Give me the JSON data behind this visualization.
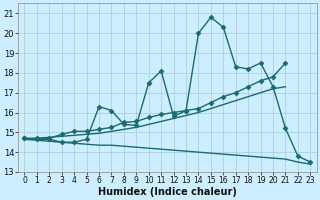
{
  "xlabel": "Humidex (Indice chaleur)",
  "background_color": "#cceeff",
  "grid_color": "#aacccc",
  "line_color": "#1a6b6b",
  "xlim": [
    -0.5,
    23.5
  ],
  "ylim": [
    13,
    21.5
  ],
  "yticks": [
    13,
    14,
    15,
    16,
    17,
    18,
    19,
    20,
    21
  ],
  "xticks": [
    0,
    1,
    2,
    3,
    4,
    5,
    6,
    7,
    8,
    9,
    10,
    11,
    12,
    13,
    14,
    15,
    16,
    17,
    18,
    19,
    20,
    21,
    22,
    23
  ],
  "series": [
    {
      "x": [
        0,
        1,
        2,
        3,
        4,
        5,
        6,
        7,
        8,
        9,
        10,
        11,
        12,
        13,
        14,
        15,
        16,
        17,
        18,
        19,
        20,
        21,
        22,
        23
      ],
      "y": [
        14.7,
        14.65,
        14.65,
        14.5,
        14.5,
        14.65,
        16.3,
        16.1,
        15.4,
        15.35,
        17.5,
        18.1,
        15.8,
        16.1,
        20.0,
        20.8,
        20.3,
        18.3,
        18.2,
        18.5,
        17.3,
        15.2,
        13.8,
        13.5
      ],
      "marker": "D",
      "markersize": 2.5,
      "linewidth": 1.0
    },
    {
      "x": [
        0,
        1,
        2,
        3,
        4,
        5,
        6,
        7,
        8,
        9,
        10,
        11,
        12,
        13,
        14,
        15,
        16,
        17,
        18,
        19,
        20,
        21
      ],
      "y": [
        14.7,
        14.7,
        14.7,
        14.9,
        15.05,
        15.05,
        15.15,
        15.25,
        15.5,
        15.55,
        15.75,
        15.9,
        16.0,
        16.1,
        16.2,
        16.5,
        16.8,
        17.0,
        17.3,
        17.6,
        17.8,
        18.5
      ],
      "marker": "D",
      "markersize": 2.5,
      "linewidth": 1.0
    },
    {
      "x": [
        0,
        1,
        2,
        3,
        4,
        5,
        6,
        7,
        8,
        9,
        10,
        11,
        12,
        13,
        14,
        15,
        16,
        17,
        18,
        19,
        20,
        21,
        22,
        23
      ],
      "y": [
        14.65,
        14.7,
        14.75,
        14.8,
        14.85,
        14.9,
        14.95,
        15.05,
        15.15,
        15.25,
        15.4,
        15.55,
        15.7,
        15.85,
        16.0,
        16.2,
        16.4,
        16.6,
        16.8,
        17.0,
        17.2,
        17.3,
        null,
        null
      ],
      "marker": null,
      "markersize": 0,
      "linewidth": 1.0
    },
    {
      "x": [
        0,
        1,
        2,
        3,
        4,
        5,
        6,
        7,
        8,
        9,
        10,
        11,
        12,
        13,
        14,
        15,
        16,
        17,
        18,
        19,
        20,
        21,
        22,
        23
      ],
      "y": [
        14.65,
        14.6,
        14.55,
        14.5,
        14.45,
        14.4,
        14.35,
        14.35,
        14.3,
        14.25,
        14.2,
        14.15,
        14.1,
        14.05,
        14.0,
        13.95,
        13.9,
        13.85,
        13.8,
        13.75,
        13.7,
        13.65,
        13.5,
        13.4
      ],
      "marker": null,
      "markersize": 0,
      "linewidth": 1.0
    }
  ]
}
